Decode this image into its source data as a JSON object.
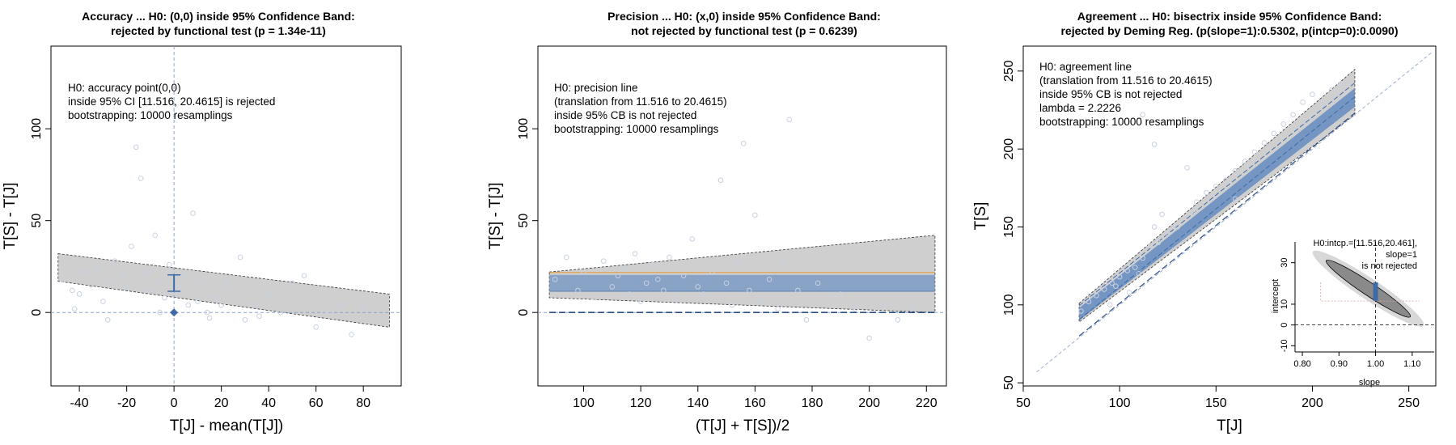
{
  "chart_data": [
    {
      "type": "scatter",
      "title": [
        "Accuracy ... H0: (0,0) inside 95% Confidence Band:",
        "rejected by functional test (p = 1.34e-11)"
      ],
      "xlabel": "T[J] - mean(T[J])",
      "ylabel": "T[S] - T[J]",
      "xlim": [
        -52,
        96
      ],
      "ylim": [
        -40,
        145
      ],
      "xticks": [
        -40,
        -20,
        0,
        20,
        40,
        60,
        80
      ],
      "yticks": [
        0,
        50,
        100
      ],
      "annotation": [
        "H0: accuracy point(0,0)",
        "inside 95% CI [11.516, 20.4615] is rejected",
        "bootstrapping: 10000 resamplings"
      ],
      "band": {
        "x": [
          -49,
          91
        ],
        "upper": [
          32,
          10
        ],
        "lower": [
          17,
          -8
        ]
      },
      "ci_segment": {
        "x": 0,
        "y": [
          11.516,
          20.4615
        ]
      },
      "reference_point": {
        "x": 0,
        "y": 0
      },
      "points": [
        [
          -47,
          18
        ],
        [
          -43,
          12
        ],
        [
          -40,
          10
        ],
        [
          -37,
          22
        ],
        [
          -35,
          15
        ],
        [
          -32,
          24
        ],
        [
          -30,
          6
        ],
        [
          -28,
          18
        ],
        [
          -25,
          28
        ],
        [
          -22,
          20
        ],
        [
          -20,
          14
        ],
        [
          -18,
          36
        ],
        [
          -16,
          90
        ],
        [
          -14,
          73
        ],
        [
          -12,
          22
        ],
        [
          -10,
          12
        ],
        [
          -8,
          42
        ],
        [
          -6,
          16
        ],
        [
          -4,
          8
        ],
        [
          -2,
          26
        ],
        [
          2,
          14
        ],
        [
          4,
          20
        ],
        [
          6,
          4
        ],
        [
          8,
          54
        ],
        [
          10,
          6
        ],
        [
          12,
          18
        ],
        [
          15,
          -3
        ],
        [
          18,
          8
        ],
        [
          20,
          4
        ],
        [
          22,
          16
        ],
        [
          25,
          12
        ],
        [
          28,
          30
        ],
        [
          30,
          -4
        ],
        [
          35,
          4
        ],
        [
          40,
          10
        ],
        [
          45,
          0
        ],
        [
          50,
          16
        ],
        [
          55,
          20
        ],
        [
          60,
          -8
        ],
        [
          65,
          0
        ],
        [
          70,
          4
        ],
        [
          75,
          -12
        ],
        [
          80,
          2
        ],
        [
          -42,
          2
        ],
        [
          -28,
          -4
        ],
        [
          -6,
          0
        ],
        [
          14,
          0
        ],
        [
          36,
          -2
        ]
      ]
    },
    {
      "type": "scatter",
      "title": [
        "Precision ... H0: (x,0) inside 95% Confidence Band:",
        "not rejected by functional test (p = 0.6239)"
      ],
      "xlabel": "(T[J] + T[S])/2",
      "ylabel": "T[S] - T[J]",
      "xlim": [
        84,
        227
      ],
      "ylim": [
        -40,
        145
      ],
      "xticks": [
        100,
        120,
        140,
        160,
        180,
        200,
        220
      ],
      "yticks": [
        0,
        50,
        100
      ],
      "annotation": [
        "H0: precision line",
        "(translation from 11.516 to 20.4615)",
        "inside 95% CB is not rejected",
        "bootstrapping: 10000 resamplings"
      ],
      "band": {
        "x": [
          88,
          223
        ],
        "upper": [
          22,
          42
        ],
        "lower": [
          8,
          0
        ]
      },
      "inner_band": {
        "x": [
          88,
          223
        ],
        "upper": [
          20.4615,
          20.4615
        ],
        "lower": [
          11.516,
          11.516
        ]
      },
      "reference_line": 0,
      "points": [
        [
          90,
          18
        ],
        [
          94,
          30
        ],
        [
          98,
          12
        ],
        [
          100,
          22
        ],
        [
          104,
          8
        ],
        [
          107,
          28
        ],
        [
          110,
          14
        ],
        [
          112,
          20
        ],
        [
          114,
          24
        ],
        [
          116,
          10
        ],
        [
          118,
          32
        ],
        [
          120,
          6
        ],
        [
          122,
          16
        ],
        [
          124,
          26
        ],
        [
          126,
          18
        ],
        [
          128,
          12
        ],
        [
          130,
          30
        ],
        [
          132,
          8
        ],
        [
          135,
          20
        ],
        [
          138,
          40
        ],
        [
          140,
          14
        ],
        [
          142,
          10
        ],
        [
          145,
          22
        ],
        [
          148,
          72
        ],
        [
          150,
          16
        ],
        [
          152,
          4
        ],
        [
          154,
          28
        ],
        [
          156,
          92
        ],
        [
          158,
          12
        ],
        [
          160,
          53
        ],
        [
          162,
          6
        ],
        [
          165,
          18
        ],
        [
          168,
          2
        ],
        [
          170,
          28
        ],
        [
          172,
          105
        ],
        [
          175,
          12
        ],
        [
          178,
          -4
        ],
        [
          182,
          16
        ],
        [
          186,
          8
        ],
        [
          190,
          10
        ],
        [
          195,
          2
        ],
        [
          200,
          -14
        ],
        [
          205,
          4
        ],
        [
          210,
          -4
        ],
        [
          215,
          2
        ]
      ]
    },
    {
      "type": "scatter",
      "title": [
        "Agreement ... H0: bisectrix inside 95% Confidence Band:",
        "rejected by Deming Reg. (p(slope=1):0.5302, p(intcp=0):0.0090)"
      ],
      "xlabel": "T[J]",
      "ylabel": "T[S]",
      "xlim": [
        50,
        264
      ],
      "ylim": [
        48,
        266
      ],
      "xticks": [
        50,
        100,
        150,
        200,
        250
      ],
      "yticks": [
        50,
        100,
        150,
        200,
        250
      ],
      "annotation": [
        "H0: agreement line",
        "(translation from 11.516 to 20.4615)",
        "inside 95% CB is not rejected",
        "lambda = 2.2226",
        "bootstrapping: 10000 resamplings"
      ],
      "outer_band": {
        "x": [
          79,
          222
        ],
        "upper": [
          101,
          251
        ],
        "lower": [
          89,
          222
        ]
      },
      "inner_band": {
        "x": [
          79,
          222
        ],
        "upper": [
          98,
          239
        ],
        "lower": [
          90,
          227
        ]
      },
      "bisectrix": {
        "x": [
          57,
          262
        ],
        "y": [
          57,
          262
        ]
      },
      "shifted_lines": [
        {
          "intercept": 11.516
        },
        {
          "intercept": 20.4615
        }
      ],
      "points": [
        [
          80,
          96
        ],
        [
          84,
          102
        ],
        [
          88,
          106
        ],
        [
          92,
          110
        ],
        [
          96,
          114
        ],
        [
          98,
          112
        ],
        [
          100,
          118
        ],
        [
          104,
          122
        ],
        [
          108,
          124
        ],
        [
          110,
          120
        ],
        [
          112,
          130
        ],
        [
          116,
          138
        ],
        [
          118,
          150
        ],
        [
          120,
          140
        ],
        [
          122,
          158
        ],
        [
          125,
          146
        ],
        [
          130,
          150
        ],
        [
          135,
          188
        ],
        [
          138,
          160
        ],
        [
          140,
          166
        ],
        [
          145,
          172
        ],
        [
          150,
          176
        ],
        [
          155,
          180
        ],
        [
          160,
          186
        ],
        [
          165,
          192
        ],
        [
          170,
          198
        ],
        [
          175,
          204
        ],
        [
          180,
          210
        ],
        [
          185,
          216
        ],
        [
          190,
          222
        ],
        [
          195,
          230
        ],
        [
          200,
          235
        ],
        [
          205,
          230
        ],
        [
          210,
          238
        ],
        [
          215,
          242
        ],
        [
          112,
          222
        ],
        [
          118,
          203
        ],
        [
          95,
          100
        ],
        [
          105,
          108
        ],
        [
          160,
          168
        ]
      ],
      "inset": {
        "title": [
          "H0:intcp.=[11.516,20.461],",
          "slope=1",
          "is not rejected"
        ],
        "xlabel": "slope",
        "ylabel": "intercept",
        "xlim": [
          0.78,
          1.16
        ],
        "ylim": [
          -13,
          40
        ],
        "xticks": [
          "0.80",
          "0.90",
          "1.00",
          "1.10"
        ],
        "yticks": [
          "-10",
          "0",
          "10",
          "30"
        ],
        "ellipse": {
          "slope_center": 0.97,
          "intercept_center": 16,
          "slope_range": [
            0.84,
            1.12
          ],
          "intercept_range": [
            1,
            34
          ]
        },
        "h0_point": {
          "slope": 1,
          "intercept": [
            11.516,
            20.4615
          ]
        }
      }
    }
  ]
}
